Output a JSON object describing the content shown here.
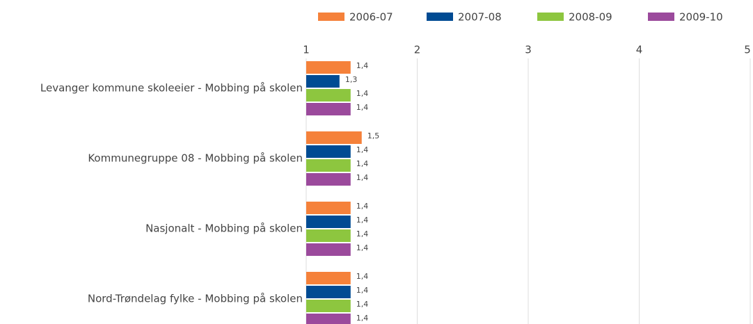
{
  "chart_data": {
    "type": "bar",
    "orientation": "horizontal",
    "categories": [
      "Levanger kommune skoleeier - Mobbing på skolen",
      "Kommunegruppe 08 - Mobbing på skolen",
      "Nasjonalt - Mobbing på skolen",
      "Nord-Trøndelag fylke - Mobbing på skolen"
    ],
    "series": [
      {
        "name": "2006-07",
        "color": "#f5813a",
        "values": [
          1.4,
          1.5,
          1.4,
          1.4
        ],
        "value_labels": [
          "1,4",
          "1,5",
          "1,4",
          "1,4"
        ]
      },
      {
        "name": "2007-08",
        "color": "#004b93",
        "values": [
          1.3,
          1.4,
          1.4,
          1.4
        ],
        "value_labels": [
          "1,3",
          "1,4",
          "1,4",
          "1,4"
        ]
      },
      {
        "name": "2008-09",
        "color": "#8dc63f",
        "values": [
          1.4,
          1.4,
          1.4,
          1.4
        ],
        "value_labels": [
          "1,4",
          "1,4",
          "1,4",
          "1,4"
        ]
      },
      {
        "name": "2009-10",
        "color": "#9b4a9c",
        "values": [
          1.4,
          1.4,
          1.4,
          1.4
        ],
        "value_labels": [
          "1,4",
          "1,4",
          "1,4",
          "1,4"
        ]
      }
    ],
    "xlim": [
      1,
      5
    ],
    "xticks": [
      1,
      2,
      3,
      4,
      5
    ],
    "grid": true,
    "legend": "top"
  }
}
